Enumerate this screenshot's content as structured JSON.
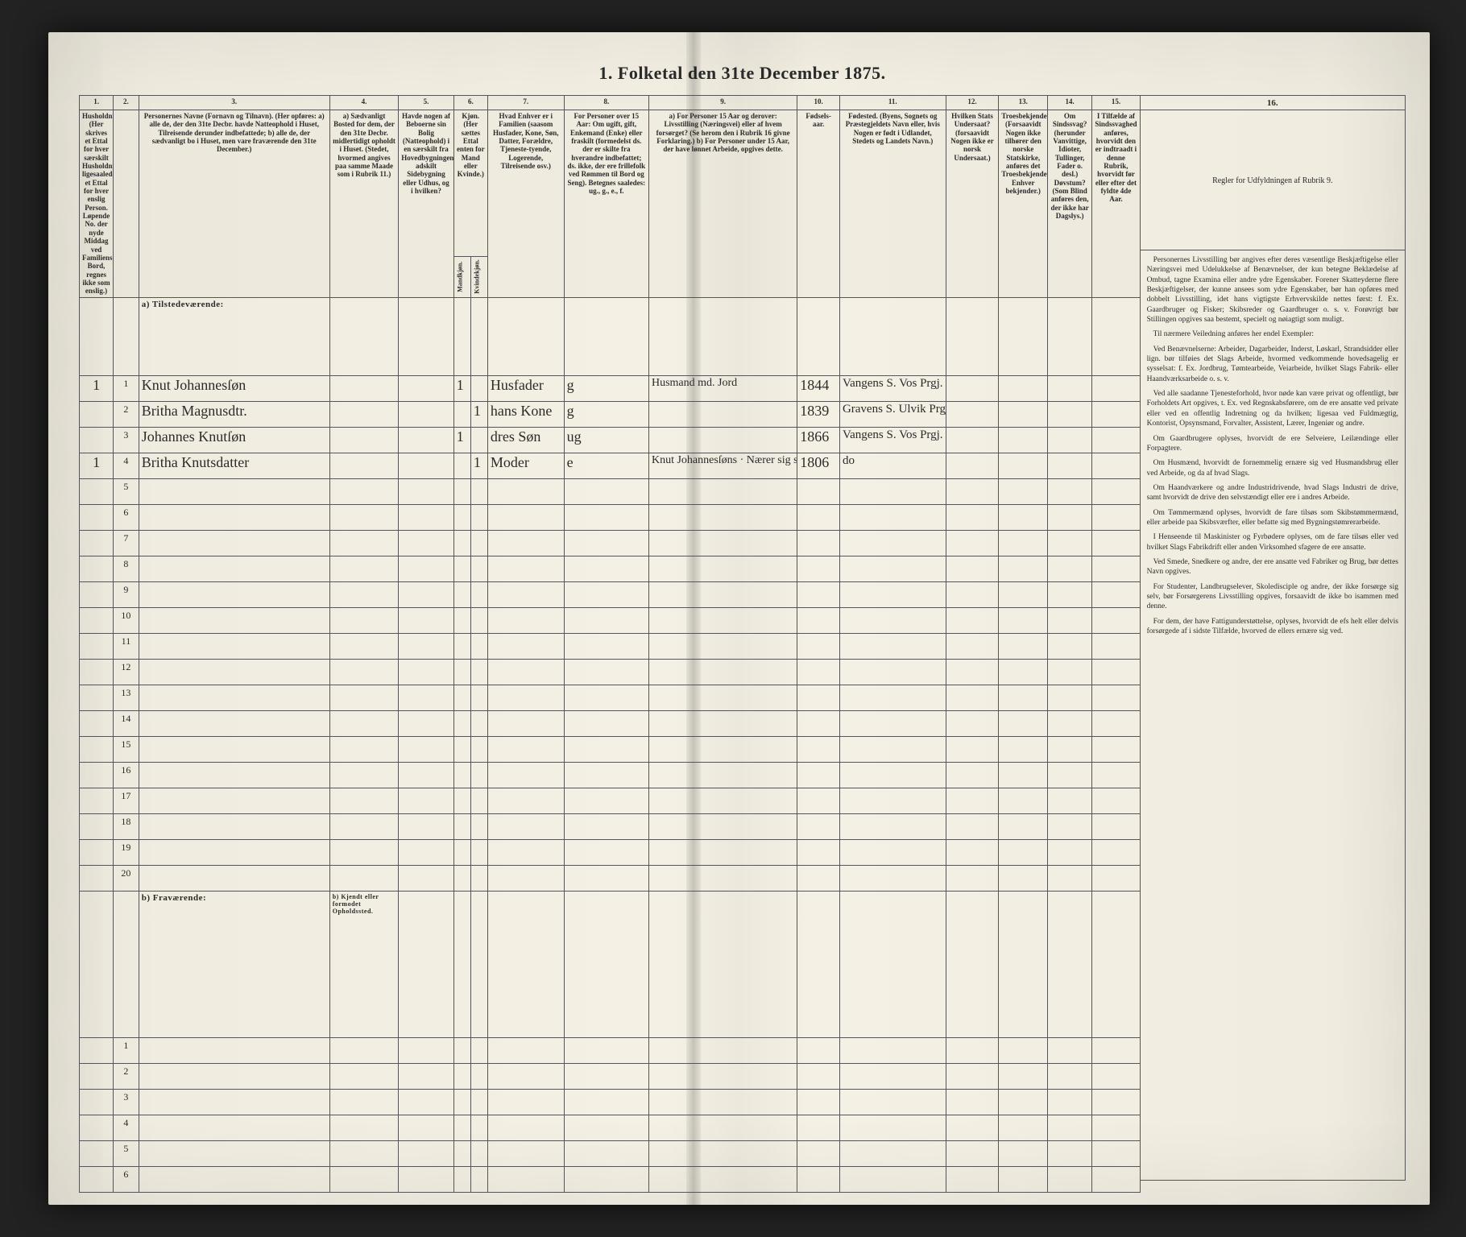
{
  "page": {
    "title": "1.  Folketal den 31te December 1875."
  },
  "columns": {
    "nums": [
      "1.",
      "2.",
      "3.",
      "4.",
      "5.",
      "6.",
      "7.",
      "8.",
      "9.",
      "10.",
      "11.",
      "12.",
      "13.",
      "14.",
      "15.",
      "16."
    ],
    "h1": "Husholdninger. (Her skrives et Ettal for hver særskilt Husholdning; ligesaaledes et Ettal for hver enslig Person. Løpende No. der nyde Middag ved Familiens Bord, regnes ikke som enslig.)",
    "h2": "",
    "h3": "Personernes Navne (Fornavn og Tilnavn). (Her opføres: a) alle de, der den 31te Decbr. havde Natteophold i Huset, Tilreisende derunder indbefattede; b) alle de, der sædvanligt bo i Huset, men vare fraværende den 31te December.)",
    "h4": "a) Sædvanligt Bosted for dem, der den 31te Decbr. midlertidigt opholdt i Huset. (Stedet, hvormed angives paa samme Maade som i Rubrik 11.)",
    "h5": "Havde nogen af Beboerne sin Bolig (Natteophold) i en særskilt fra Hovedbygningen adskilt Sidebygning eller Udhus, og i hvilken?",
    "h6": "Kjøn. (Her sættes Ettal enten for Mand eller Kvinde.)",
    "h6a": "Mandkjøn.",
    "h6b": "Kvindekjøn.",
    "h7": "Hvad Enhver er i Familien (saasom Husfader, Kone, Søn, Datter, Forældre, Tjeneste-tyende, Logerende, Tilreisende osv.)",
    "h8": "For Personer over 15 Aar: Om ugift, gift, Enkemand (Enke) eller fraskilt (formedelst ds. der er skilte fra hverandre indbefattet; ds. ikke, der ere frillefolk ved Rømmen til Bord og Seng). Betegnes saaledes: ug., g., e., f.",
    "h9": "a) For Personer 15 Aar og derover: Livsstilling (Næringsvei) eller af hvem forsørget? (Se herom den i Rubrik 16 givne Forklaring.) b) For Personer under 15 Aar, der have lønnet Arbeide, opgives dette.",
    "h10": "Fødsels-aar.",
    "h11": "Fødested. (Byens, Sognets og Præstegjeldets Navn eller, hvis Nogen er født i Udlandet, Stedets og Landets Navn.)",
    "h12": "Hvilken Stats Undersaat? (forsaavidt Nogen ikke er norsk Undersaat.)",
    "h13": "Troesbekjendelse. (Forsaavidt Nogen ikke tilhører den norske Statskirke, anføres det Troesbekjendelse Enhver bekjender.)",
    "h14": "Om Sindssvag? (herunder Vanvittige, Idioter, Tullinger, Fader o. desl.) Døvstum? (Som Blind anføres den, der ikke har Dagslys.)",
    "h15": "I Tilfælde af Sindssvaghed anføres, hvorvidt den er indtraadt i denne Rubrik, hvorvidt før eller efter det fyldte 4de Aar.",
    "h16": "Regler for Udfyldningen af Rubrik 9."
  },
  "sections": {
    "present": "a)  Tilstedeværende:",
    "absent": "b)  Fraværende:",
    "absent_c4": "b) Kjendt eller formodet Opholdssted."
  },
  "rows_present_count": 20,
  "rows_absent_count": 6,
  "entries": [
    {
      "row": 1,
      "c1": "1",
      "c2": "1",
      "name": "Knut Johannesſøn",
      "c5": "",
      "c6a": "1",
      "c6b": "",
      "fam": "Husfader",
      "civ": "g",
      "occ": "Husmand md. Jord",
      "year": "1844",
      "birthplace": "Vangens S. Vos Prgj."
    },
    {
      "row": 2,
      "c1": "",
      "c2": "2",
      "name": "Britha Magnusdtr.",
      "c5": "",
      "c6a": "",
      "c6b": "1",
      "fam": "hans Kone",
      "civ": "g",
      "occ": "",
      "year": "1839",
      "birthplace": "Gravens S. Ulvik Prgj."
    },
    {
      "row": 3,
      "c1": "",
      "c2": "3",
      "name": "Johannes Knutſøn",
      "c5": "",
      "c6a": "1",
      "c6b": "",
      "fam": "dres Søn",
      "civ": "ug",
      "occ": "",
      "year": "1866",
      "birthplace": "Vangens S. Vos Prgj."
    },
    {
      "row": 4,
      "c1": "1",
      "c2": "4",
      "name": "Britha Knutsdatter",
      "c5": "",
      "c6a": "",
      "c6b": "1",
      "fam": "Moder",
      "civ": "e",
      "occ": "Knut Johannesſøns · Nærer sig som Inderstø · om Sønnen · …",
      "year": "1806",
      "birthplace": "do"
    }
  ],
  "instructions": {
    "p1": "Personernes Livsstilling bør angives efter deres væsentlige Beskjæftigelse eller Næringsvei med Udelukkelse af Benævnelser, der kun betegne Beklædelse af Ombud, tagne Examina eller andre ydre Egenskaber. Forener Skatteyderne flere Beskjæftigelser, der kunne ansees som ydre Egenskaber, bør han opføres med dobbelt Livsstilling, idet hans vigtigste Erhvervskilde nettes først: f. Ex. Gaardbruger og Fisker; Skibsreder og Gaardbruger o. s. v. Forøvrigt bør Stillingen opgives saa bestemt, specielt og nøiagtigt som muligt.",
    "p2": "Til nærmere Veiledning anføres her endel Exempler:",
    "p3": "Ved Benævnelserne: Arbeider, Dagarbeider, Inderst, Løskarl, Strandsidder eller lign. bør tilføies det Slags Arbeide, hvormed vedkommende hovedsagelig er sysselsat: f. Ex. Jordbrug, Tømtearbeide, Veiarbeide, hvilket Slags Fabrik- eller Haandværksarbeide o. s. v.",
    "p4": "Ved alle saadanne Tjenesteforhold, hvor nøde kan være privat og offentligt, bør Forholdets Art opgives, t. Ex. ved Regnskabsførere, om de ere ansatte ved private eller ved en offentlig Indretning og da hvilken; ligesaa ved Fuldmægtig, Kontorist, Opsynsmand, Forvalter, Assistent, Lærer, Ingeniør og andre.",
    "p5": "Om Gaardbrugere oplyses, hvorvidt de ere Selveiere, Leilændinge eller Forpagtere.",
    "p6": "Om Husmænd, hvorvidt de fornemmelig ernære sig ved Husmandsbrug eller ved Arbeide, og da af hvad Slags.",
    "p7": "Om Haandværkere og andre Industridrivende, hvad Slags Industri de drive, samt hvorvidt de drive den selvstændigt eller ere i andres Arbeide.",
    "p8": "Om Tømmermænd oplyses, hvorvidt de fare tilsøs som Skibstømmermænd, eller arbeide paa Skibsværfter, eller befatte sig med Bygningstømrerarbeide.",
    "p9": "I Henseende til Maskinister og Fyrbødere oplyses, om de fare tilsøs eller ved hvilket Slags Fabrikdrift eller anden Virksomhed sfagere de ere ansatte.",
    "p10": "Ved Smede, Snedkere og andre, der ere ansatte ved Fabriker og Brug, bør dettes Navn opgives.",
    "p11": "For Studenter, Landbrugselever, Skoledisciple og andre, der ikke forsørge sig selv, bør Forsørgerens Livsstilling opgives, forsaavidt de ikke bo isammen med denne.",
    "p12": "For dem, der have Fattigunderstøttelse, oplyses, hvorvidt de efs helt eller delvis forsørgede af i sidste Tilfælde, hvorved de ellers ernære sig ved."
  }
}
